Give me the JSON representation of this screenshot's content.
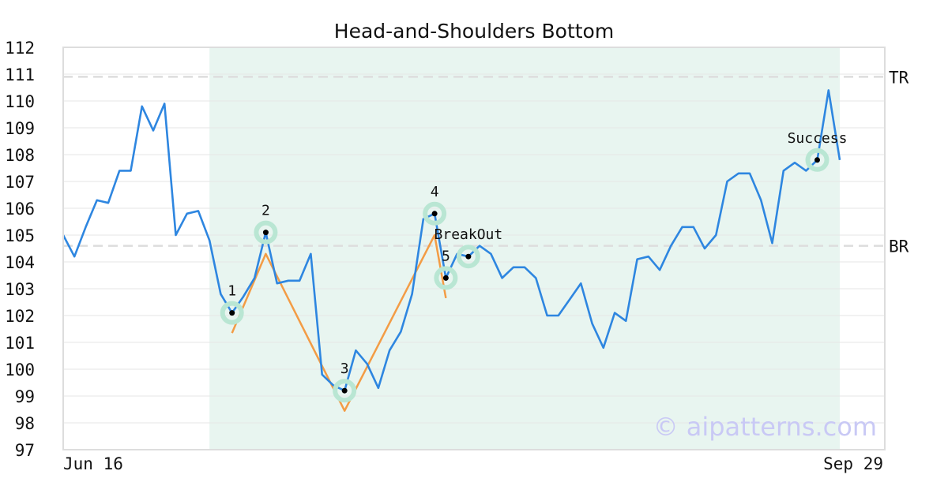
{
  "chart_data": {
    "type": "line",
    "title": "Head-and-Shoulders Bottom",
    "xlabel": "",
    "ylabel": "",
    "x_tick_labels": [
      "Jun 16",
      "Sep 29"
    ],
    "ylim": [
      97,
      112
    ],
    "yticks": [
      97,
      98,
      99,
      100,
      101,
      102,
      103,
      104,
      105,
      106,
      107,
      108,
      109,
      110,
      111,
      112
    ],
    "grid": true,
    "watermark": "© aipatterns.com",
    "price_series": {
      "color": "#2e86e0",
      "values": [
        105.0,
        104.2,
        105.3,
        106.3,
        106.2,
        107.4,
        107.4,
        109.8,
        108.9,
        109.9,
        105.0,
        105.8,
        105.9,
        104.8,
        102.8,
        102.1,
        102.7,
        103.4,
        105.1,
        103.2,
        103.3,
        103.3,
        104.3,
        99.8,
        99.4,
        99.2,
        100.7,
        100.2,
        99.3,
        100.7,
        101.4,
        102.8,
        105.6,
        105.8,
        103.4,
        104.3,
        104.2,
        104.6,
        104.3,
        103.4,
        103.8,
        103.8,
        103.4,
        102.0,
        102.0,
        102.6,
        103.2,
        101.7,
        100.8,
        102.1,
        101.8,
        104.1,
        104.2,
        103.7,
        104.6,
        105.3,
        105.3,
        104.5,
        105.0,
        107.0,
        107.3,
        107.3,
        106.3,
        104.7,
        107.4,
        107.7,
        107.4,
        107.8,
        110.4,
        107.8
      ]
    },
    "pattern_region": {
      "start_index": 13,
      "end_index": 69,
      "color": "#e8f5f0"
    },
    "reference_lines": [
      {
        "label": "TR",
        "value": 110.9
      },
      {
        "label": "BR",
        "value": 104.6
      }
    ],
    "pattern_path": {
      "color": "#f39c45",
      "points": [
        {
          "index": 15,
          "value": 101.35
        },
        {
          "index": 18,
          "value": 104.3
        },
        {
          "index": 25,
          "value": 98.45
        },
        {
          "index": 33,
          "value": 105.0
        },
        {
          "index": 34,
          "value": 102.65
        }
      ]
    },
    "markers": [
      {
        "label": "1",
        "index": 15,
        "value": 102.1,
        "label_pos": "above"
      },
      {
        "label": "2",
        "index": 18,
        "value": 105.1,
        "label_pos": "above"
      },
      {
        "label": "3",
        "index": 25,
        "value": 99.2,
        "label_pos": "above"
      },
      {
        "label": "4",
        "index": 33,
        "value": 105.8,
        "label_pos": "above"
      },
      {
        "label": "5",
        "index": 34,
        "value": 103.4,
        "label_pos": "above"
      },
      {
        "label": "BreakOut",
        "index": 36,
        "value": 104.2,
        "label_pos": "above"
      },
      {
        "label": "Success",
        "index": 67,
        "value": 107.8,
        "label_pos": "above"
      }
    ]
  }
}
